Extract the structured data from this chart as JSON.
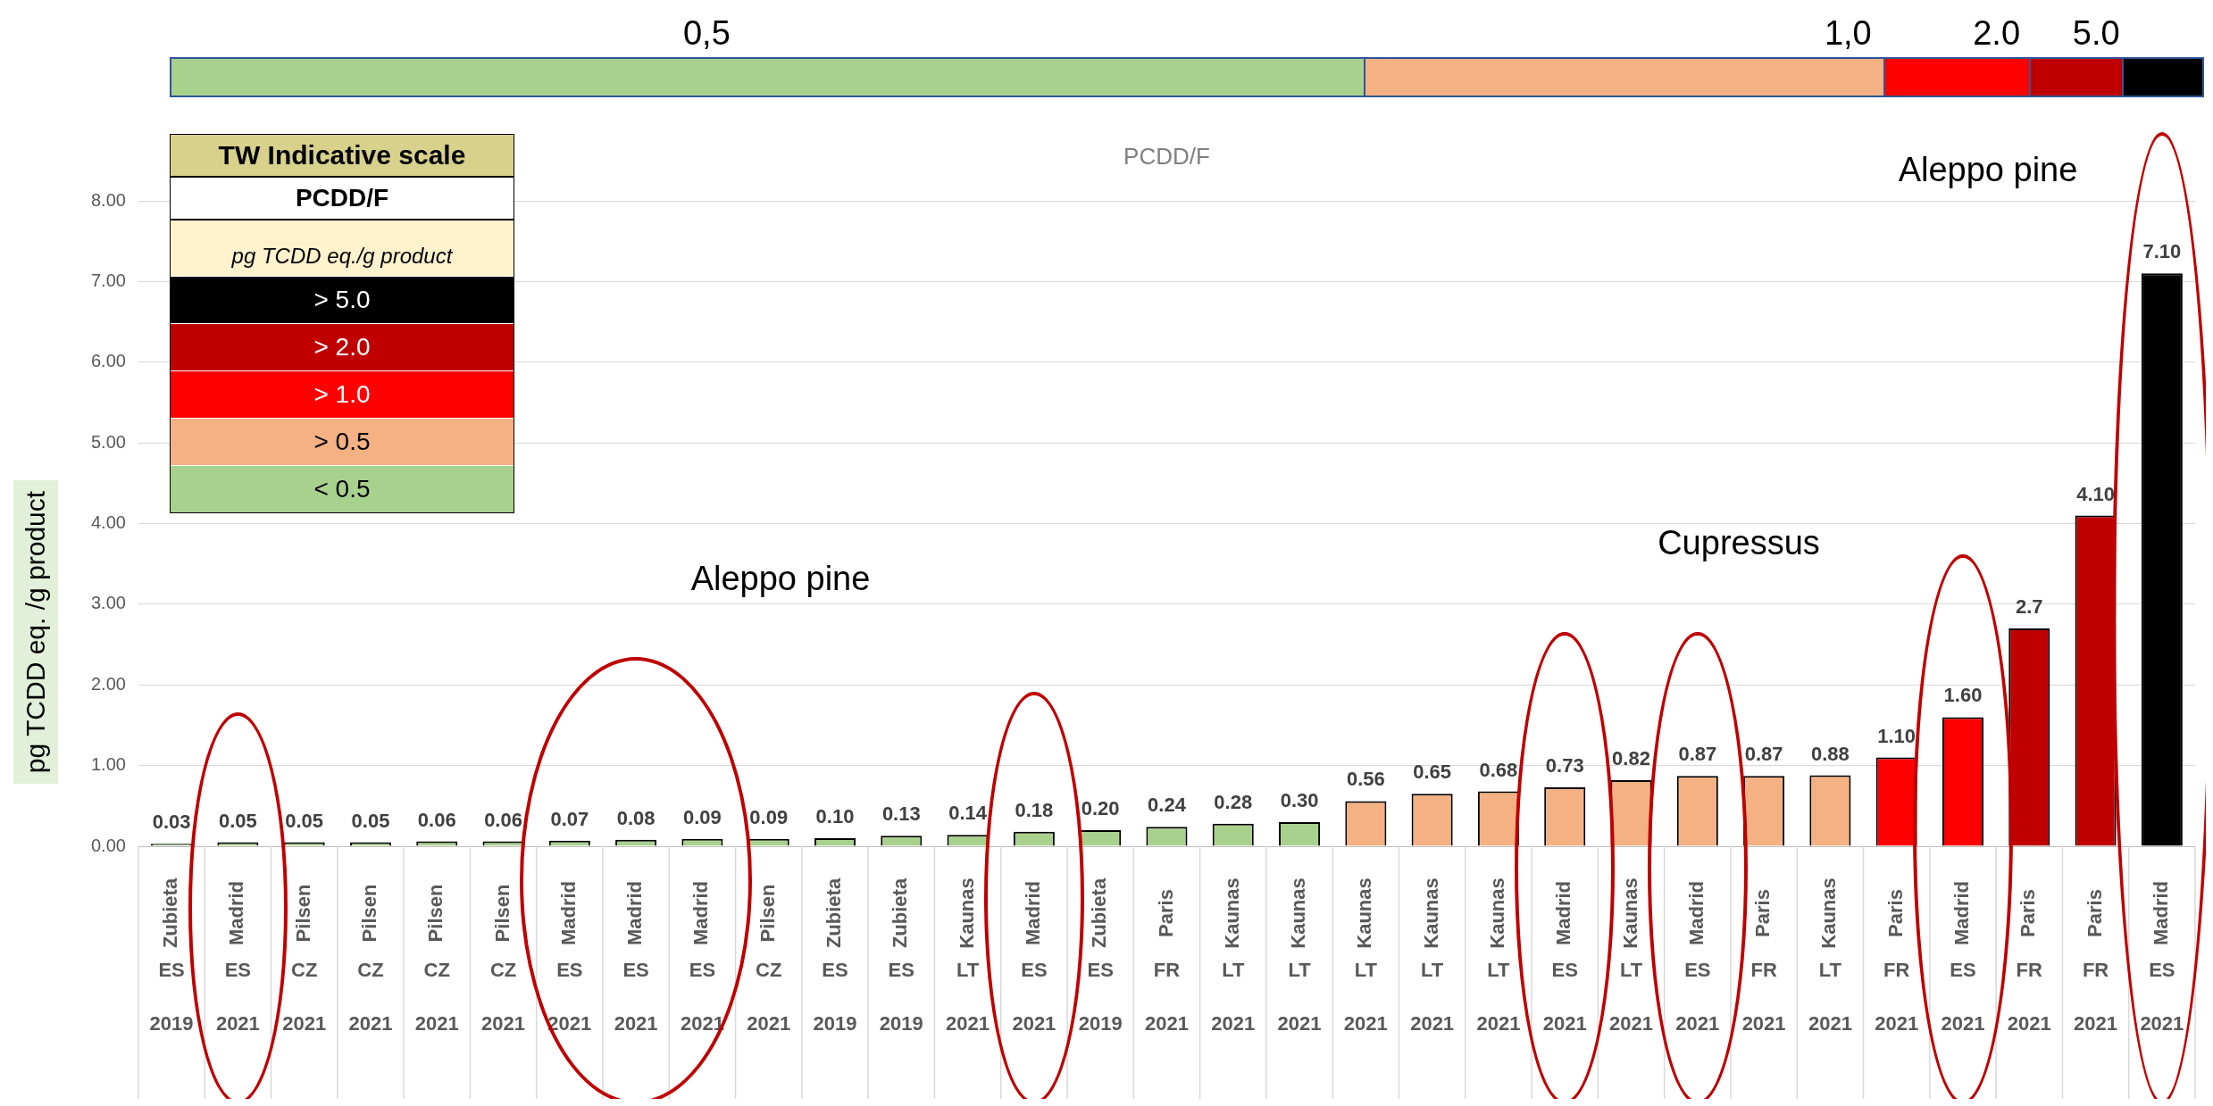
{
  "chart_data": {
    "type": "bar",
    "title": "PCDD/F",
    "ylabel": "pg TCDD eq. /g product",
    "legend_title": "TW Indicative scale",
    "legend": "top left",
    "stacked": true,
    "grid": "y",
    "data_labels": false,
    "annotations": [
      "0,5",
      "1,0",
      "2.0",
      "5.0",
      "PCDD/F",
      "pg TCDD eq./g product",
      "Aleppo pine",
      "Cupressus",
      "Aleppo pine"
    ],
    "categories": [
      "Zubieta\nES\n2019",
      "Madrid\nES\n2021",
      "Pilsen\nCZ\n2021",
      "Pilsen\nCZ\n2021",
      "Pilsen\nCZ\n2021",
      "Pilsen\nCZ\n2021",
      "Madrid\nES\n2021",
      "Madrid\nES\n2021",
      "Madrid\nES\n2021",
      "Pilsen\nCZ\n2021",
      "Zubieta\nES\n2019",
      "Zubieta\nES\n2019",
      "Kaunas\nLT\n2021",
      "Madrid\nES\n2021",
      "Zubieta\nES\n2019",
      "Paris\nFR\n2021",
      "Kaunas\nLT\n2021",
      "Kaunas\nLT\n2021",
      "Kaunas\nLT\n2021",
      "Kaunas\nLT\n2021",
      "Kaunas\nLT\n2021",
      "Madrid\nES\n2021",
      "Kaunas\nLT\n2021",
      "Madrid\nES\n2021",
      "Paris\nFR\n2021",
      "Kaunas\nLT\n2021",
      "Paris\nFR\n2021",
      "Madrid\nES\n2021",
      "Paris\nFR\n2021",
      "Paris\nFR\n2021",
      "Madrid\nES\n2021"
    ],
    "ylim": [
      0,
      8
    ],
    "yticks": [
      {
        "value": 0,
        "label": "0.00"
      },
      {
        "value": 1,
        "label": "1.00"
      },
      {
        "value": 2,
        "label": "2.00"
      },
      {
        "value": 3,
        "label": "3.00"
      },
      {
        "value": 4,
        "label": "4.00"
      },
      {
        "value": 5,
        "label": "5.00"
      },
      {
        "value": 6,
        "label": "6.00"
      },
      {
        "value": 7,
        "label": "7.00"
      },
      {
        "value": 8,
        "label": "8.00"
      }
    ],
    "series": [
      {
        "name": "> 5.0",
        "color": "#000000",
        "values": [
          null,
          null,
          null,
          null,
          null,
          null,
          null,
          null,
          null,
          null,
          null,
          null,
          null,
          null,
          null,
          null,
          null,
          null,
          null,
          null,
          null,
          null,
          null,
          null,
          null,
          null,
          null,
          null,
          null,
          null,
          7.1
        ],
        "value_labels": [
          null,
          null,
          null,
          null,
          null,
          null,
          null,
          null,
          null,
          null,
          null,
          null,
          null,
          null,
          null,
          null,
          null,
          null,
          null,
          null,
          null,
          null,
          null,
          null,
          null,
          null,
          null,
          null,
          null,
          null,
          "7.10"
        ]
      },
      {
        "name": "> 2.0",
        "color": "#c00000",
        "values": [
          null,
          null,
          null,
          null,
          null,
          null,
          null,
          null,
          null,
          null,
          null,
          null,
          null,
          null,
          null,
          null,
          null,
          null,
          null,
          null,
          null,
          null,
          null,
          null,
          null,
          null,
          null,
          null,
          2.7,
          4.1,
          null
        ],
        "value_labels": [
          null,
          null,
          null,
          null,
          null,
          null,
          null,
          null,
          null,
          null,
          null,
          null,
          null,
          null,
          null,
          null,
          null,
          null,
          null,
          null,
          null,
          null,
          null,
          null,
          null,
          null,
          null,
          null,
          "2.7",
          "4.10",
          null
        ]
      },
      {
        "name": "> 1.0",
        "color": "#ff0000",
        "values": [
          null,
          null,
          null,
          null,
          null,
          null,
          null,
          null,
          null,
          null,
          null,
          null,
          null,
          null,
          null,
          null,
          null,
          null,
          null,
          null,
          null,
          null,
          null,
          null,
          null,
          null,
          1.1,
          1.6,
          null,
          null,
          null
        ],
        "value_labels": [
          null,
          null,
          null,
          null,
          null,
          null,
          null,
          null,
          null,
          null,
          null,
          null,
          null,
          null,
          null,
          null,
          null,
          null,
          null,
          null,
          null,
          null,
          null,
          null,
          null,
          null,
          "1.10",
          "1.60",
          null,
          null,
          null
        ]
      },
      {
        "name": "> 0.5",
        "color": "#f4b183",
        "values": [
          null,
          null,
          null,
          null,
          null,
          null,
          null,
          null,
          null,
          null,
          null,
          null,
          null,
          null,
          null,
          null,
          null,
          null,
          0.56,
          0.65,
          0.68,
          0.73,
          0.82,
          0.87,
          0.87,
          0.88,
          null,
          null,
          null,
          null,
          null
        ],
        "value_labels": [
          null,
          null,
          null,
          null,
          null,
          null,
          null,
          null,
          null,
          null,
          null,
          null,
          null,
          null,
          null,
          null,
          null,
          null,
          "0.56",
          "0.65",
          "0.68",
          "0.73",
          "0.82",
          "0.87",
          "0.87",
          "0.88",
          null,
          null,
          null,
          null,
          null
        ]
      },
      {
        "name": "< 0.5",
        "color": "#a9d18e",
        "values": [
          0.03,
          0.05,
          0.05,
          0.05,
          0.06,
          0.06,
          0.07,
          0.08,
          0.09,
          0.09,
          0.1,
          0.13,
          0.14,
          0.18,
          0.2,
          0.24,
          0.28,
          0.3,
          null,
          null,
          null,
          null,
          null,
          null,
          null,
          null,
          null,
          null,
          null,
          null,
          null
        ],
        "value_labels": [
          "0.03",
          "0.05",
          "0.05",
          "0.05",
          "0.06",
          "0.06",
          "0.07",
          "0.08",
          "0.09",
          "0.09",
          "0.10",
          "0.13",
          "0.14",
          "0.18",
          "0.20",
          "0.24",
          "0.28",
          "0.30",
          null,
          null,
          null,
          null,
          null,
          null,
          null,
          null,
          null,
          null,
          null,
          null,
          null
        ]
      }
    ]
  }
}
